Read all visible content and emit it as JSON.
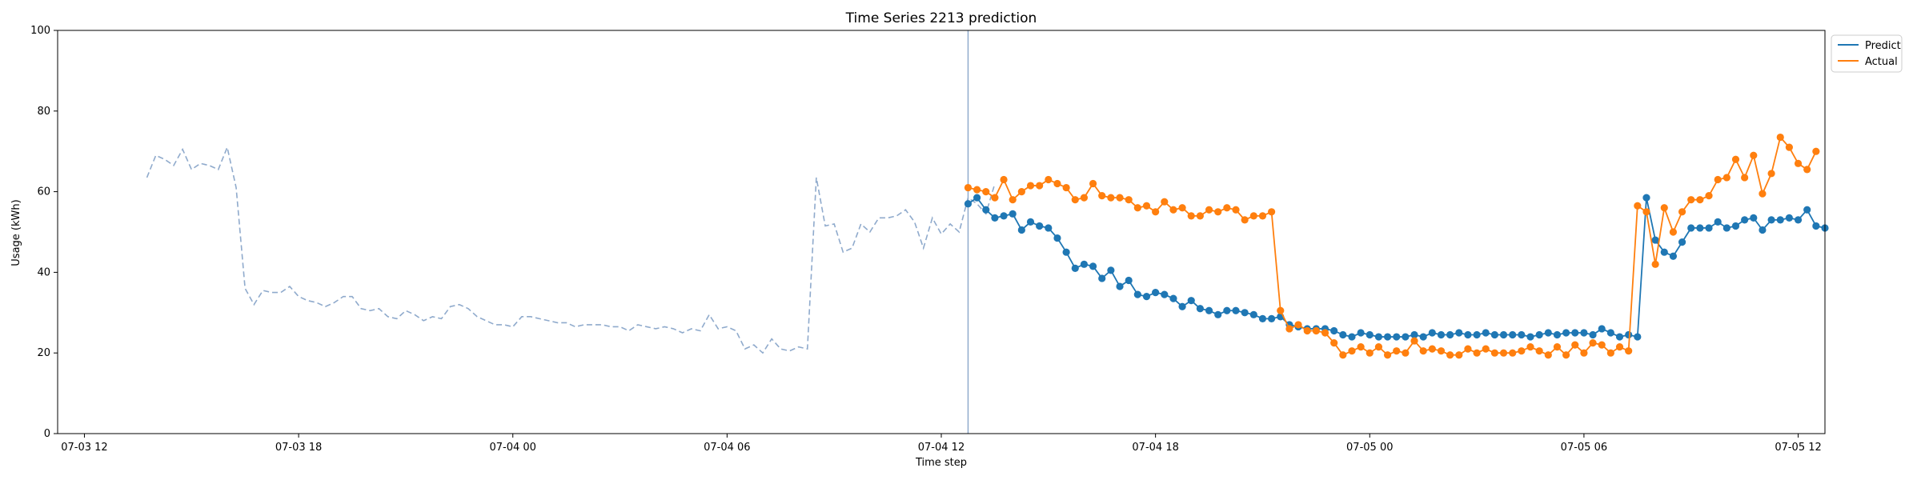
{
  "chart_data": {
    "type": "line",
    "title": "Time Series 2213 prediction",
    "xlabel": "Time step",
    "ylabel": "Usage (kWh)",
    "ylim": [
      0,
      100
    ],
    "xlim": [
      -3,
      195
    ],
    "yticks": [
      0,
      20,
      40,
      60,
      80,
      100
    ],
    "xticks": [
      {
        "x": 0,
        "label": "07-03 12"
      },
      {
        "x": 24,
        "label": "07-03 18"
      },
      {
        "x": 48,
        "label": "07-04 00"
      },
      {
        "x": 72,
        "label": "07-04 06"
      },
      {
        "x": 96,
        "label": "07-04 12"
      },
      {
        "x": 120,
        "label": "07-04 18"
      },
      {
        "x": 144,
        "label": "07-05 00"
      },
      {
        "x": 168,
        "label": "07-05 06"
      },
      {
        "x": 192,
        "label": "07-05 12"
      }
    ],
    "grid": false,
    "legend_position": "upper right, outside plot",
    "forecast_start": 99,
    "colors": {
      "history": "#8faacc",
      "predict": "#1f77b4",
      "actual": "#ff7f0e",
      "divider": "#8faacc"
    },
    "history": {
      "name": "History",
      "x_start": 7,
      "values": [
        63.5,
        69,
        68,
        66.5,
        70.5,
        65.5,
        67,
        66.5,
        65.5,
        71,
        61,
        36,
        32,
        35.5,
        35,
        35,
        36.5,
        34,
        33,
        32.5,
        31.5,
        32.5,
        34,
        34,
        31,
        30.5,
        31,
        29,
        28.5,
        30.5,
        29.5,
        28,
        29,
        28.5,
        31.5,
        32,
        31,
        29,
        28,
        27,
        27,
        26.5,
        29,
        29,
        28.5,
        28,
        27.5,
        27.5,
        26.5,
        27,
        27,
        27,
        26.5,
        26.5,
        25.5,
        27,
        26.5,
        26,
        26.5,
        26,
        25,
        26,
        25.5,
        29.5,
        26,
        26.5,
        25.5,
        21,
        22,
        20,
        23.5,
        21,
        20.5,
        21.5,
        21,
        63.5,
        51.5,
        52,
        45,
        46,
        52,
        50,
        53.5,
        53.5,
        54,
        55.5,
        52.5,
        46,
        53.5,
        49.5,
        52,
        50,
        58.5,
        57,
        54.5,
        62
      ]
    },
    "series": [
      {
        "name": "Predict",
        "x_start": 99,
        "values": [
          57,
          58.5,
          55.5,
          53.5,
          54,
          54.5,
          50.5,
          52.5,
          51.5,
          51,
          48.5,
          45,
          41,
          42,
          41.5,
          38.5,
          40.5,
          36.5,
          38,
          34.5,
          34,
          35,
          34.5,
          33.5,
          31.5,
          33,
          31,
          30.5,
          29.5,
          30.5,
          30.5,
          30,
          29.5,
          28.5,
          28.5,
          29,
          27,
          26.5,
          26,
          26,
          26,
          25.5,
          24.5,
          24,
          25,
          24.5,
          24,
          24,
          24,
          24,
          24.5,
          24,
          25,
          24.5,
          24.5,
          25,
          24.5,
          24.5,
          25,
          24.5,
          24.5,
          24.5,
          24.5,
          24,
          24.5,
          25,
          24.5,
          25,
          25,
          25,
          24.5,
          26,
          25,
          24,
          24.5,
          24,
          58.5,
          48,
          45,
          44,
          47.5,
          51,
          51,
          51,
          52.5,
          51,
          51.5,
          53,
          53.5,
          50.5,
          53,
          53,
          53.5,
          53,
          55.5,
          51.5,
          51
        ]
      },
      {
        "name": "Actual",
        "x_start": 99,
        "values": [
          61,
          60.5,
          60,
          58.5,
          63,
          58,
          60,
          61.5,
          61.5,
          63,
          62,
          61,
          58,
          58.5,
          62,
          59,
          58.5,
          58.5,
          58,
          56,
          56.5,
          55,
          57.5,
          55.5,
          56,
          54,
          54,
          55.5,
          55,
          56,
          55.5,
          53,
          54,
          54,
          55,
          30.5,
          26,
          27,
          25.5,
          25.5,
          25,
          22.5,
          19.5,
          20.5,
          21.5,
          20,
          21.5,
          19.5,
          20.5,
          20,
          23,
          20.5,
          21,
          20.5,
          19.5,
          19.5,
          21,
          20,
          21,
          20,
          20,
          20,
          20.5,
          21.5,
          20.5,
          19.5,
          21.5,
          19.5,
          22,
          20,
          22.5,
          22,
          20,
          21.5,
          20.5,
          56.5,
          55,
          42,
          56,
          50,
          55,
          58,
          58,
          59,
          63,
          63.5,
          68,
          63.5,
          69,
          59.5,
          64.5,
          73.5,
          71,
          67,
          65.5,
          70
        ]
      }
    ]
  }
}
